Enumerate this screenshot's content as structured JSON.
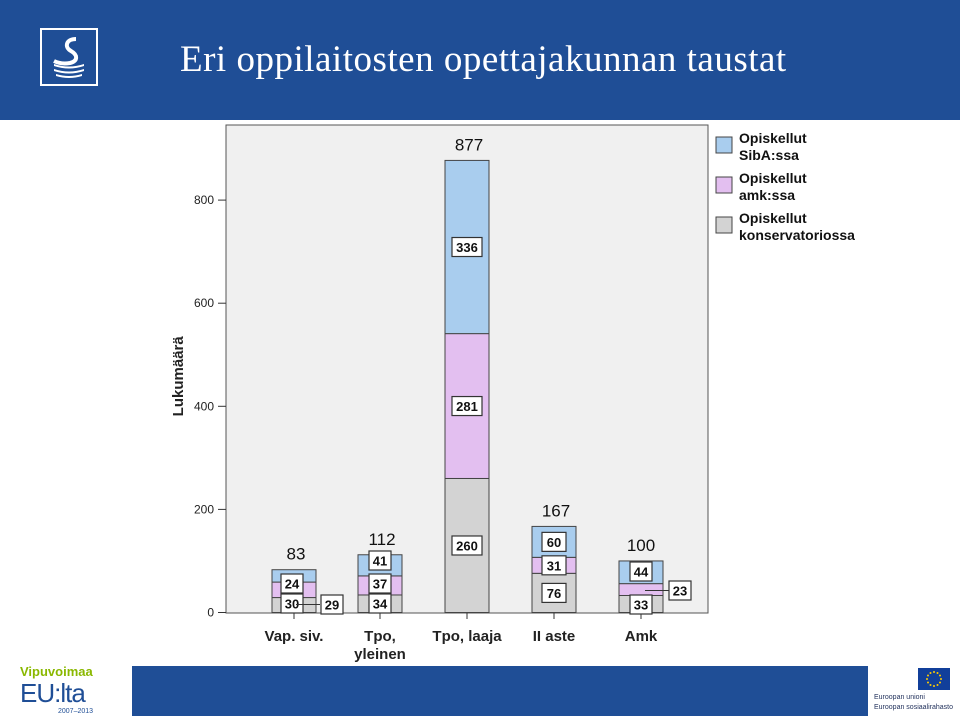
{
  "header": {
    "title": "Eri oppilaitosten opettajakunnan taustat"
  },
  "footer": {
    "vipuvoimaa": "Vipuvoimaa",
    "eulta": "EU:lta",
    "years": "2007–2013",
    "eu_union": "Euroopan unioni",
    "eu_fund": "Euroopan sosiaalirahasto"
  },
  "colors": {
    "header_bg": "#1f4e96",
    "plot_bg": "#f0f0f0",
    "konservatorio": "#d3d3d3",
    "amk": "#e3bff0",
    "siba": "#a9cdee"
  },
  "chart_data": {
    "type": "bar",
    "stacked": true,
    "ylabel": "Lukumäärä",
    "xlabel": "",
    "ylim": [
      0,
      920
    ],
    "yticks": [
      0,
      200,
      400,
      600,
      800
    ],
    "grid": false,
    "legend_position": "top-right",
    "categories": [
      "Vap. siv.",
      "Tpo, yleinen",
      "Tpo, laaja",
      "II aste",
      "Amk"
    ],
    "series": [
      {
        "name": "Opiskellut konservatoriossa",
        "color": "#d3d3d3",
        "values": [
          29,
          34,
          260,
          76,
          33
        ]
      },
      {
        "name": "Opiskellut amk:ssa",
        "color": "#e3bff0",
        "values": [
          30,
          37,
          281,
          31,
          23
        ]
      },
      {
        "name": "Opiskellut SibA:ssa",
        "color": "#a9cdee",
        "values": [
          24,
          41,
          336,
          60,
          44
        ]
      }
    ],
    "totals": [
      "83",
      "112",
      "877",
      "167",
      "100"
    ],
    "segment_labels": [
      [
        "29",
        "30",
        "24"
      ],
      [
        "34",
        "37",
        "41"
      ],
      [
        "260",
        "281",
        "336"
      ],
      [
        "76",
        "31",
        "60"
      ],
      [
        "33",
        "23",
        "44"
      ]
    ]
  }
}
